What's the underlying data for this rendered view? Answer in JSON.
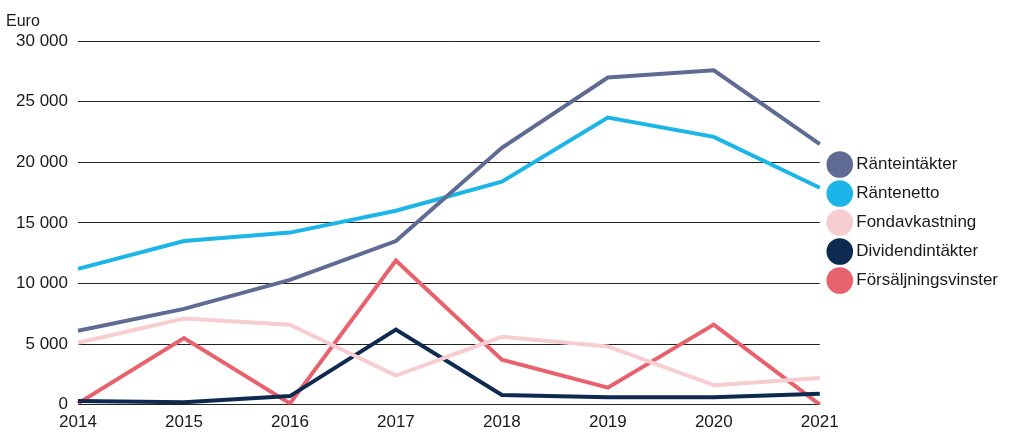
{
  "chart_data": {
    "type": "line",
    "y_label": "Euro",
    "categories": [
      "2014",
      "2015",
      "2016",
      "2017",
      "2018",
      "2019",
      "2020",
      "2021"
    ],
    "series": [
      {
        "name": "Ränteintäkter",
        "color": "#5f6b93",
        "values": [
          6100,
          7900,
          10300,
          13500,
          21200,
          27000,
          27600,
          21500
        ]
      },
      {
        "name": "Räntenetto",
        "color": "#1cb5e8",
        "values": [
          11200,
          13500,
          14200,
          16000,
          18400,
          23700,
          22100,
          17900
        ]
      },
      {
        "name": "Fondavkastning",
        "color": "#f6cdd0",
        "values": [
          5100,
          7100,
          6600,
          2400,
          5600,
          4800,
          1600,
          2200
        ]
      },
      {
        "name": "Dividendintäkter",
        "color": "#0f2a50",
        "values": [
          300,
          200,
          700,
          6200,
          800,
          600,
          600,
          900
        ]
      },
      {
        "name": "Försäljningsvinster",
        "color": "#e8626e",
        "values": [
          100,
          5500,
          100,
          11900,
          3700,
          1400,
          6600,
          0
        ]
      }
    ],
    "ylim": [
      0,
      30000
    ],
    "yticks": [
      0,
      {
        "value": 5000,
        "label": "5 000"
      },
      {
        "value": 10000,
        "label": "10 000"
      },
      {
        "value": 15000,
        "label": "15 000"
      },
      {
        "value": 20000,
        "label": "20 000"
      },
      {
        "value": 25000,
        "label": "25 000"
      },
      {
        "value": 30000,
        "label": "30 000"
      }
    ],
    "grid": true,
    "legend": "right",
    "marker": "none",
    "line_style": "solid"
  }
}
